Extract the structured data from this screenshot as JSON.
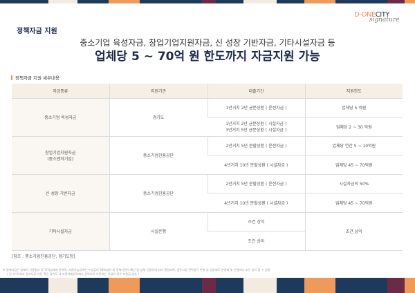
{
  "header": {
    "title": "정책자금 지원",
    "logo_main": "D-ONE",
    "logo_accent": "CITY",
    "logo_script": "signature"
  },
  "subtitle": "중소기업 육성자금, 창업기업지원자금, 신 성장 기반자금, 기타시설자금 등",
  "headline": "업체당 5 ~ 70억 원 한도까지 자금지원 가능",
  "section_title": "정책자금 지원 세부내용",
  "table": {
    "headers": [
      "자금종류",
      "지원기관",
      "대출기간",
      "지원한도"
    ],
    "groups": [
      {
        "type": "중소기업 육성자금",
        "agency": "경기도",
        "rows": [
          {
            "period": "1년거치 2년 균분상환 ( 운전자금 )",
            "limit": "업체당 5 억원"
          },
          {
            "period": "1년거치 2년 균분상환 ( 시설자금 )",
            "period2": "3년거치 5년 균분상환 ( 시설자금 )",
            "limit": "업체당  2 ~ 30 억원"
          }
        ]
      },
      {
        "type": "창업기업지원자금",
        "type2": "(중소벤처기업)",
        "agency": "중소기업진흥공단",
        "rows": [
          {
            "period": "2년거치 5년 분할상환 ( 운전자금 )",
            "limit": "업체당 연간 5 ~ 10억원"
          },
          {
            "period": "4년거치 10년 분할상환 ( 시설자금 )",
            "limit": "업체당 45 ~ 70억원"
          }
        ]
      },
      {
        "type": "신 성장 기반자금",
        "agency": "중소기업진흥공단",
        "rows": [
          {
            "period": "2년거치 5년 분할상환 ( 운전자금 )",
            "limit": "시설자금의 50%"
          },
          {
            "period": "4년거치 10년 분할상환 ( 시설자금 )",
            "limit": "업체당 45 ~ 70억원"
          }
        ]
      },
      {
        "type": "기타시설자금",
        "agency": "시설은행",
        "rows": [
          {
            "period": "조건 상이"
          },
          {
            "period": "조건 상이"
          }
        ],
        "limit": "조건 상이"
      }
    ]
  },
  "caption": "[참조 : 중소기업진흥공단, 경기도청]",
  "footnotes": [
    "※ 정책자금은 업체의 신용평가 후 적격업체에 한하며, 지원가능금액은 수입금의 90%범위 내 정책기관의 예산 및 업체 신용도에 따라 결정되며, 일주시점 관련법규 변경 및 금융제도 변경에 및 은행마다 조건 상이 할 수 있음",
    "( 단 서*도에서 경기도로 이전 혹은 경기도 내 과밀억제권역에서 권역으로 이전하는 기업의 경우 지원금 상승 )"
  ],
  "colors": {
    "navy": "#1d3a5c",
    "orange": "#ef9a5a",
    "cream": "#f3ebe0",
    "plum": "#6b2a45",
    "header_bg": "#f6efe6"
  }
}
